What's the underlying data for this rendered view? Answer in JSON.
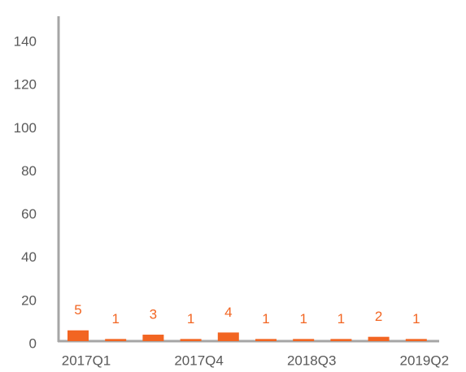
{
  "chart_data": {
    "type": "bar",
    "categories": [
      "2017Q1",
      null,
      null,
      "2017Q4",
      null,
      null,
      "2018Q3",
      null,
      null,
      "2019Q2"
    ],
    "values": [
      5,
      1,
      3,
      1,
      4,
      1,
      1,
      1,
      2,
      1
    ],
    "color": "#f26522",
    "label_color": "#f26522",
    "ylim": [
      0,
      140
    ],
    "yticks": [
      0,
      20,
      40,
      60,
      80,
      100,
      120,
      140
    ],
    "grid": false
  }
}
